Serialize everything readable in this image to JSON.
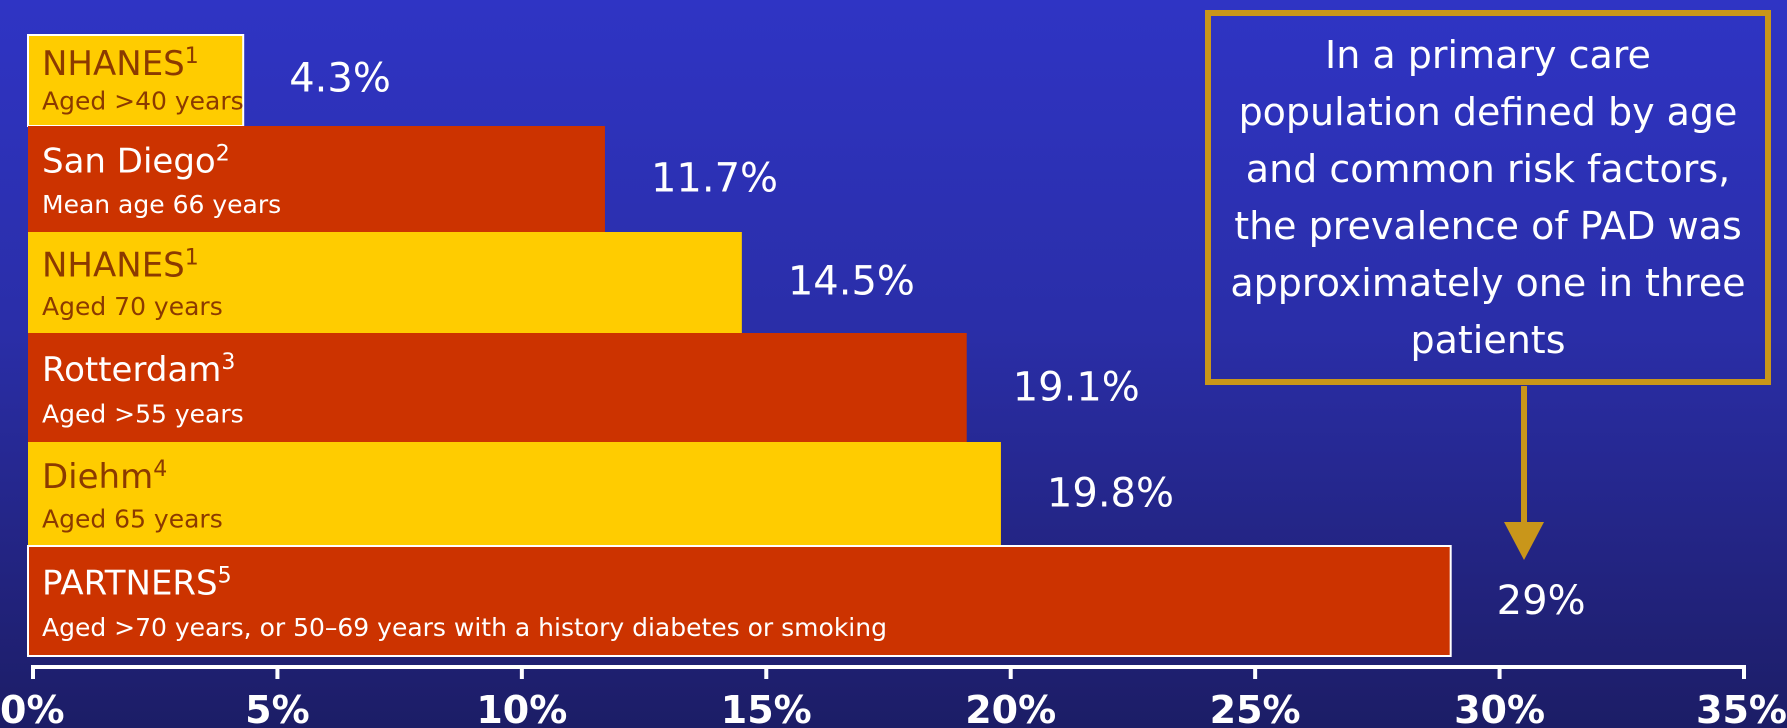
{
  "chart_data": {
    "type": "bar",
    "orientation": "horizontal",
    "categories": [
      {
        "name": "NHANES",
        "sup": "1",
        "sub": "Aged >40 years"
      },
      {
        "name": "San Diego",
        "sup": "2",
        "sub": "Mean age 66 years"
      },
      {
        "name": "NHANES",
        "sup": "1",
        "sub": "Aged 70 years"
      },
      {
        "name": "Rotterdam",
        "sup": "3",
        "sub": "Aged >55 years"
      },
      {
        "name": "Diehm",
        "sup": "4",
        "sub": "Aged 65 years"
      },
      {
        "name": "PARTNERS",
        "sup": "5",
        "sub": "Aged >70 years, or 50–69 years with a history diabetes or smoking"
      }
    ],
    "values": [
      4.3,
      11.7,
      14.5,
      19.1,
      19.8,
      29
    ],
    "value_labels": [
      "4.3%",
      "11.7%",
      "14.5%",
      "19.1%",
      "19.8%",
      "29%"
    ],
    "colors": [
      "#ffcc00",
      "#cc3300",
      "#ffcc00",
      "#cc3300",
      "#ffcc00",
      "#cc3300"
    ],
    "xlim": [
      0,
      35
    ],
    "xticks": [
      0,
      5,
      10,
      15,
      20,
      25,
      30,
      35
    ],
    "xtick_labels": [
      "0%",
      "5%",
      "10%",
      "15%",
      "20%",
      "25%",
      "30%",
      "35%"
    ],
    "grid": false,
    "legend": "none"
  },
  "callout": {
    "text": "In a primary care population defined by age and common risk factors, the prevalence of PAD was approximately one in three patients",
    "border_color": "#c9961a",
    "points_to_value": 30.5
  },
  "style": {
    "text_on_yellow": "#8b3a00",
    "text_on_red": "#ffffff",
    "axis_color": "#ffffff",
    "arrow_color": "#c9961a"
  }
}
